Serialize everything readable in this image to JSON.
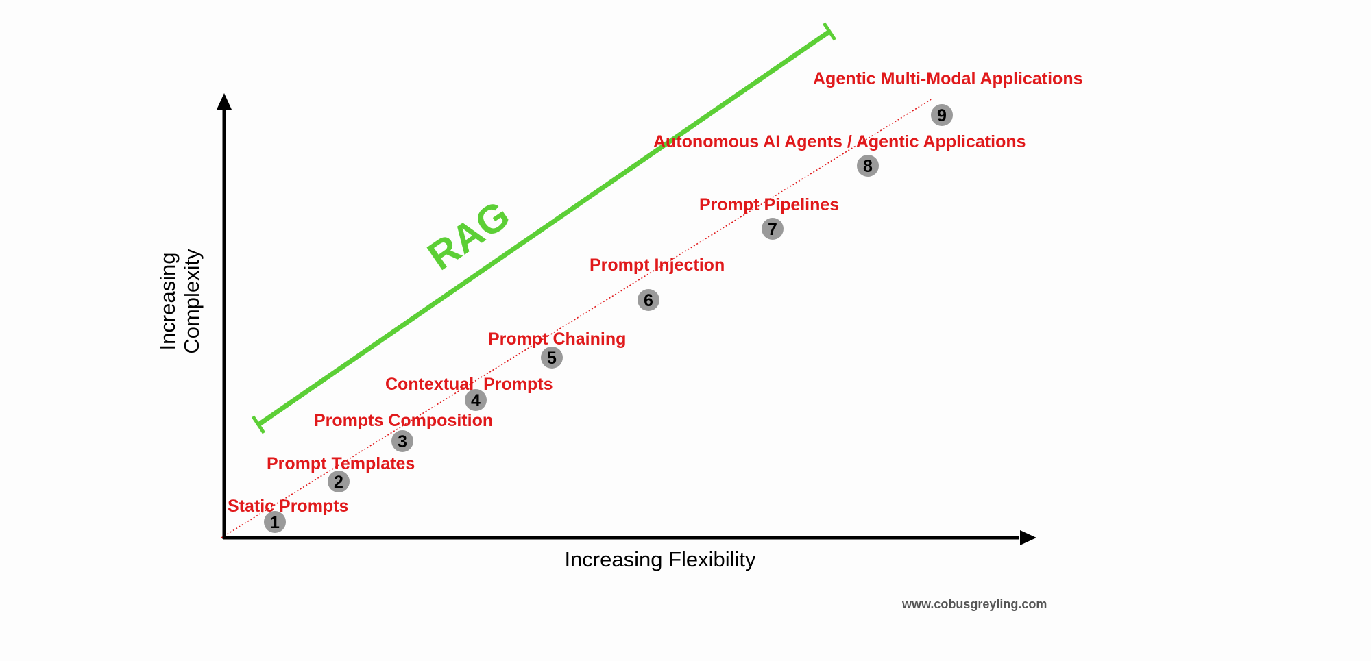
{
  "colors": {
    "background": "#fdfdfd",
    "axis": "#000000",
    "label": "#e0191b",
    "trend_line": "#e0191b",
    "rag": "#5ccf36",
    "marker_fill": "#9a9a9a",
    "marker_text": "#000000",
    "credit": "#555555"
  },
  "axes": {
    "x_title": "Increasing Flexibility",
    "y_title_line1": "Increasing",
    "y_title_line2": "Complexity"
  },
  "rag": {
    "label": "RAG"
  },
  "steps": [
    {
      "number": "1",
      "label": "Static Prompts"
    },
    {
      "number": "2",
      "label": "Prompt Templates"
    },
    {
      "number": "3",
      "label": "Prompts Composition"
    },
    {
      "number": "4",
      "label": "Contextual  Prompts"
    },
    {
      "number": "5",
      "label": "Prompt Chaining"
    },
    {
      "number": "6",
      "label": "Prompt Injection"
    },
    {
      "number": "7",
      "label": "Prompt Pipelines"
    },
    {
      "number": "8",
      "label": "Autonomous AI Agents / Agentic Applications"
    },
    {
      "number": "9",
      "label": "Agentic Multi-Modal Applications"
    }
  ],
  "credit": "www.cobusgreyling.com"
}
